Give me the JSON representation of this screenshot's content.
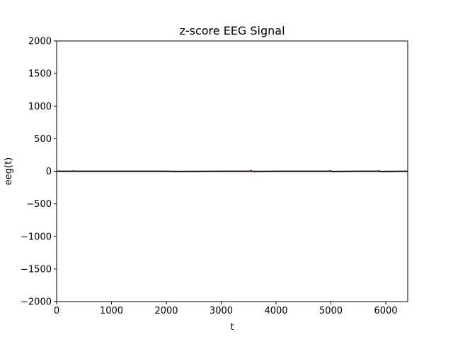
{
  "chart_data": {
    "type": "line",
    "title": "z-score EEG Signal",
    "xlabel": "t",
    "ylabel": "eeg(t)",
    "xlim": [
      0,
      6400
    ],
    "ylim": [
      -2000,
      2000
    ],
    "xticks": [
      0,
      1000,
      2000,
      3000,
      4000,
      5000,
      6000
    ],
    "yticks": [
      -2000,
      -1500,
      -1000,
      -500,
      0,
      500,
      1000,
      1500,
      2000
    ],
    "xtick_labels": [
      "0",
      "1000",
      "2000",
      "3000",
      "4000",
      "5000",
      "6000"
    ],
    "ytick_labels": [
      "−2000",
      "−1500",
      "−1000",
      "−500",
      "0",
      "500",
      "1000",
      "1500",
      "2000"
    ],
    "grid": false,
    "series": [
      {
        "color": "#ff0000",
        "x": [
          0,
          300,
          310,
          320,
          1000,
          2000,
          2200,
          3000,
          3530,
          3545,
          3560,
          3600,
          4000,
          4980,
          4990,
          5000,
          5030,
          5500,
          5860,
          5870,
          5880,
          5920,
          6400
        ],
        "y": [
          0,
          0,
          6,
          0,
          0,
          0,
          -5,
          0,
          0,
          8,
          0,
          -4,
          0,
          0,
          7,
          0,
          -5,
          0,
          0,
          6,
          0,
          -5,
          0
        ]
      },
      {
        "color": "#000000",
        "x": [
          0,
          300,
          310,
          320,
          3530,
          3545,
          3560,
          4980,
          4990,
          5000,
          5860,
          5870,
          5880,
          6400
        ],
        "y": [
          0,
          0,
          10,
          0,
          0,
          14,
          0,
          0,
          12,
          0,
          0,
          10,
          0,
          0
        ]
      }
    ]
  }
}
